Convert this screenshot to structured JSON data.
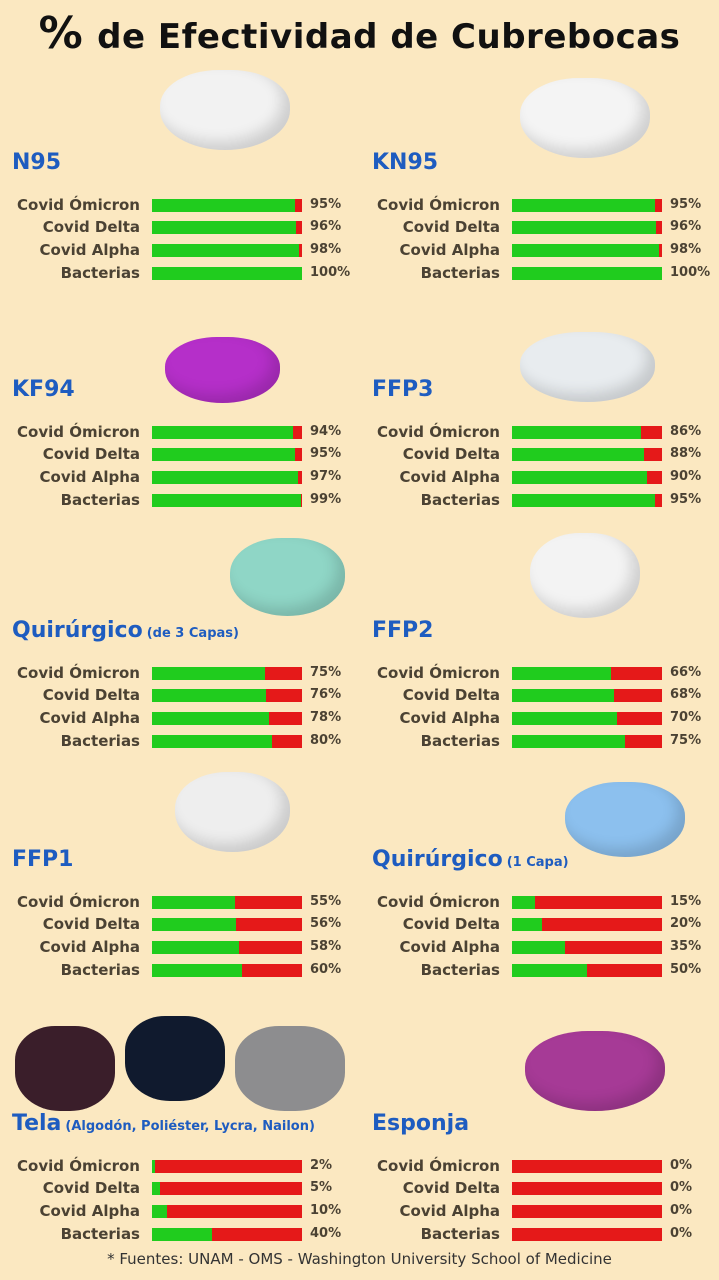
{
  "title": {
    "symbol": "%",
    "text": "de Efectividad de Cubrebocas"
  },
  "colors": {
    "protected": "#20cc1e",
    "unprotected": "#e51919",
    "title_blue": "#1e5cc0",
    "background": "#fbe8c1"
  },
  "chart_data": {
    "type": "bar",
    "orientation": "horizontal-stacked-100",
    "xlim": [
      0,
      100
    ],
    "unit": "%",
    "categories": [
      "Covid Ómicron",
      "Covid Delta",
      "Covid Alpha",
      "Bacterias"
    ],
    "panels": [
      {
        "name": "N95",
        "sub": "",
        "values": [
          95,
          96,
          98,
          100
        ],
        "mask_color": "#f2f2f2"
      },
      {
        "name": "KN95",
        "sub": "",
        "values": [
          95,
          96,
          98,
          100
        ],
        "mask_color": "#f4f4f4"
      },
      {
        "name": "KF94",
        "sub": "",
        "values": [
          94,
          95,
          97,
          99
        ],
        "mask_color": "#b52fc9"
      },
      {
        "name": "FFP3",
        "sub": "",
        "values": [
          86,
          88,
          90,
          95
        ],
        "mask_color": "#e8ecef"
      },
      {
        "name": "Quirúrgico",
        "sub": "(de 3 Capas)",
        "values": [
          75,
          76,
          78,
          80
        ],
        "mask_color": "#8fd6c6"
      },
      {
        "name": "FFP2",
        "sub": "",
        "values": [
          66,
          68,
          70,
          75
        ],
        "mask_color": "#f3f3f3"
      },
      {
        "name": "FFP1",
        "sub": "",
        "values": [
          55,
          56,
          58,
          60
        ],
        "mask_color": "#eeeeee"
      },
      {
        "name": "Quirúrgico",
        "sub": "(1 Capa)",
        "values": [
          15,
          20,
          35,
          50
        ],
        "mask_color": "#8cc0ee"
      },
      {
        "name": "Tela",
        "sub": "(Algodón, Poliéster, Lycra, Nailon)",
        "values": [
          2,
          5,
          10,
          40
        ],
        "mask_color": "#1a1a2a"
      },
      {
        "name": "Esponja",
        "sub": "",
        "values": [
          0,
          0,
          0,
          0
        ],
        "mask_color": "#a63a96"
      }
    ]
  },
  "footer": "* Fuentes: UNAM - OMS - Washington University School of Medicine"
}
